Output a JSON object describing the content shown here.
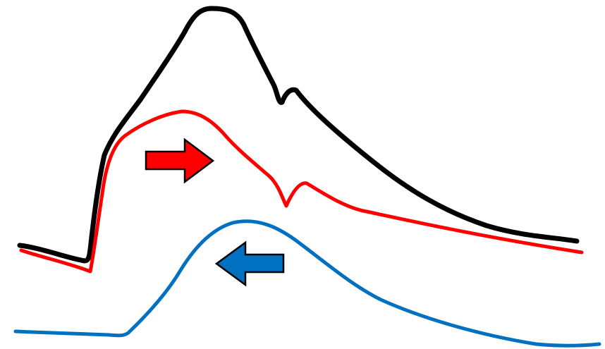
{
  "diagram": {
    "curves": [
      {
        "id": "black-curve",
        "color": "#000000"
      },
      {
        "id": "red-curve",
        "color": "#ff0000"
      },
      {
        "id": "blue-curve",
        "color": "#0070c0"
      }
    ],
    "arrows": [
      {
        "id": "red-arrow",
        "direction": "right",
        "color": "#ff0000",
        "icon": "arrow-right-icon"
      },
      {
        "id": "blue-arrow",
        "direction": "left",
        "color": "#0070c0",
        "icon": "arrow-left-icon"
      }
    ]
  }
}
